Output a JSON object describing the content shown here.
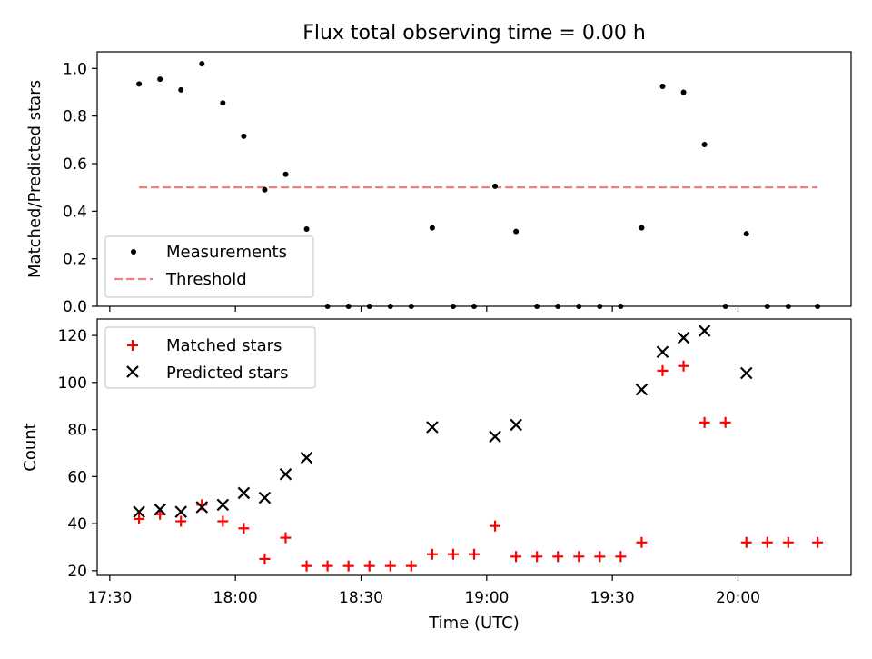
{
  "title": "Flux total observing time = 0.00 h",
  "chart_data": [
    {
      "type": "scatter",
      "panel": "top",
      "title": "Flux total observing time = 0.00 h",
      "xlabel": "",
      "ylabel": "Matched/Predicted stars",
      "ylim": [
        0.0,
        1.07
      ],
      "yticks": [
        0.0,
        0.2,
        0.4,
        0.6,
        0.8,
        1.0
      ],
      "ytick_labels": [
        "0.0",
        "0.2",
        "0.4",
        "0.6",
        "0.8",
        "1.0"
      ],
      "legend_position": "lower-left",
      "series": [
        {
          "name": "Measurements",
          "marker": "dot",
          "color": "#000000",
          "x": [
            "17:37",
            "17:42",
            "17:47",
            "17:52",
            "17:57",
            "18:02",
            "18:07",
            "18:12",
            "18:17",
            "18:22",
            "18:27",
            "18:32",
            "18:37",
            "18:42",
            "18:47",
            "18:52",
            "18:57",
            "19:02",
            "19:07",
            "19:12",
            "19:17",
            "19:22",
            "19:27",
            "19:32",
            "19:37",
            "19:42",
            "19:47",
            "19:52",
            "19:57",
            "20:02",
            "20:07",
            "20:12",
            "20:19"
          ],
          "values": [
            0.935,
            0.955,
            0.91,
            1.02,
            0.855,
            0.715,
            0.49,
            0.555,
            0.325,
            0.0,
            0.0,
            0.0,
            0.0,
            0.0,
            0.33,
            0.0,
            0.0,
            0.505,
            0.315,
            0.0,
            0.0,
            0.0,
            0.0,
            0.0,
            0.33,
            0.925,
            0.9,
            0.68,
            0.0,
            0.305,
            0.0,
            0.0,
            0.0
          ]
        },
        {
          "name": "Threshold",
          "marker": "dashed-line",
          "color": "#f08080",
          "x": [
            "17:37",
            "20:19"
          ],
          "values": [
            0.5,
            0.5
          ]
        }
      ]
    },
    {
      "type": "scatter",
      "panel": "bottom",
      "xlabel": "Time (UTC)",
      "ylabel": "Count",
      "ylim": [
        18,
        127
      ],
      "yticks": [
        20,
        40,
        60,
        80,
        100,
        120
      ],
      "ytick_labels": [
        "20",
        "40",
        "60",
        "80",
        "100",
        "120"
      ],
      "xlim": [
        "17:27",
        "20:27"
      ],
      "xticks": [
        "17:30",
        "18:00",
        "18:30",
        "19:00",
        "19:30",
        "20:00"
      ],
      "xtick_labels": [
        "17:30",
        "18:00",
        "18:30",
        "19:00",
        "19:30",
        "20:00"
      ],
      "legend_position": "upper-left",
      "series": [
        {
          "name": "Matched stars",
          "marker": "plus",
          "color": "#ff0000",
          "x": [
            "17:37",
            "17:42",
            "17:47",
            "17:52",
            "17:57",
            "18:02",
            "18:07",
            "18:12",
            "18:17",
            "18:22",
            "18:27",
            "18:32",
            "18:37",
            "18:42",
            "18:47",
            "18:52",
            "18:57",
            "19:02",
            "19:07",
            "19:12",
            "19:17",
            "19:22",
            "19:27",
            "19:32",
            "19:37",
            "19:42",
            "19:47",
            "19:52",
            "19:57",
            "20:02",
            "20:07",
            "20:12",
            "20:19"
          ],
          "values": [
            42,
            44,
            41,
            48,
            41,
            38,
            25,
            34,
            22,
            22,
            22,
            22,
            22,
            22,
            27,
            27,
            27,
            39,
            26,
            26,
            26,
            26,
            26,
            26,
            32,
            105,
            107,
            83,
            83,
            32,
            32,
            32,
            32
          ]
        },
        {
          "name": "Predicted stars",
          "marker": "x",
          "color": "#000000",
          "x": [
            "17:37",
            "17:42",
            "17:47",
            "17:52",
            "17:57",
            "18:02",
            "18:07",
            "18:12",
            "18:17",
            "18:47",
            "19:02",
            "19:07",
            "19:37",
            "19:42",
            "19:47",
            "19:52",
            "20:02"
          ],
          "values": [
            45,
            46,
            45,
            47,
            48,
            53,
            51,
            61,
            68,
            81,
            77,
            82,
            97,
            113,
            119,
            122,
            104
          ]
        }
      ]
    }
  ]
}
